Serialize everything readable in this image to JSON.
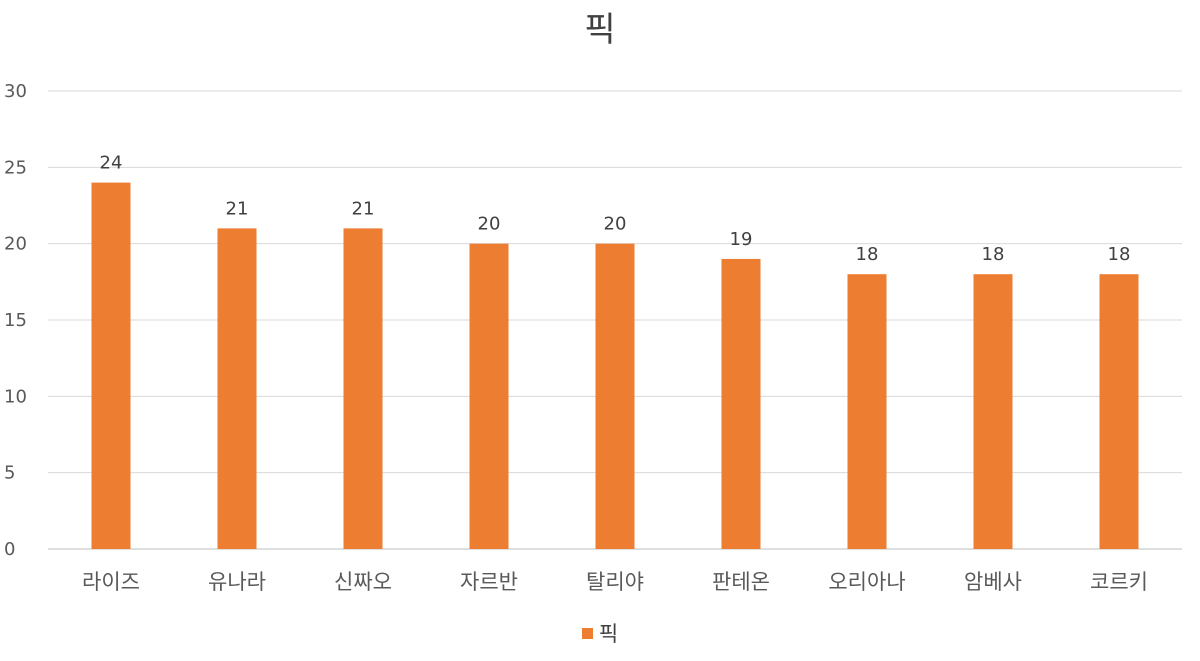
{
  "chart_data": {
    "type": "bar",
    "title": "픽",
    "categories": [
      "라이즈",
      "유나라",
      "신짜오",
      "자르반",
      "탈리야",
      "판테온",
      "오리아나",
      "암베사",
      "코르키"
    ],
    "series": [
      {
        "name": "픽",
        "values": [
          24,
          21,
          21,
          20,
          20,
          19,
          18,
          18,
          18
        ],
        "color": "#ED7D31"
      }
    ],
    "yticks": [
      "0",
      "5",
      "10",
      "15",
      "20",
      "25",
      "30"
    ],
    "ylim": [
      0,
      30
    ],
    "grid": true,
    "legend_position": "bottom",
    "show_data_labels": true
  }
}
